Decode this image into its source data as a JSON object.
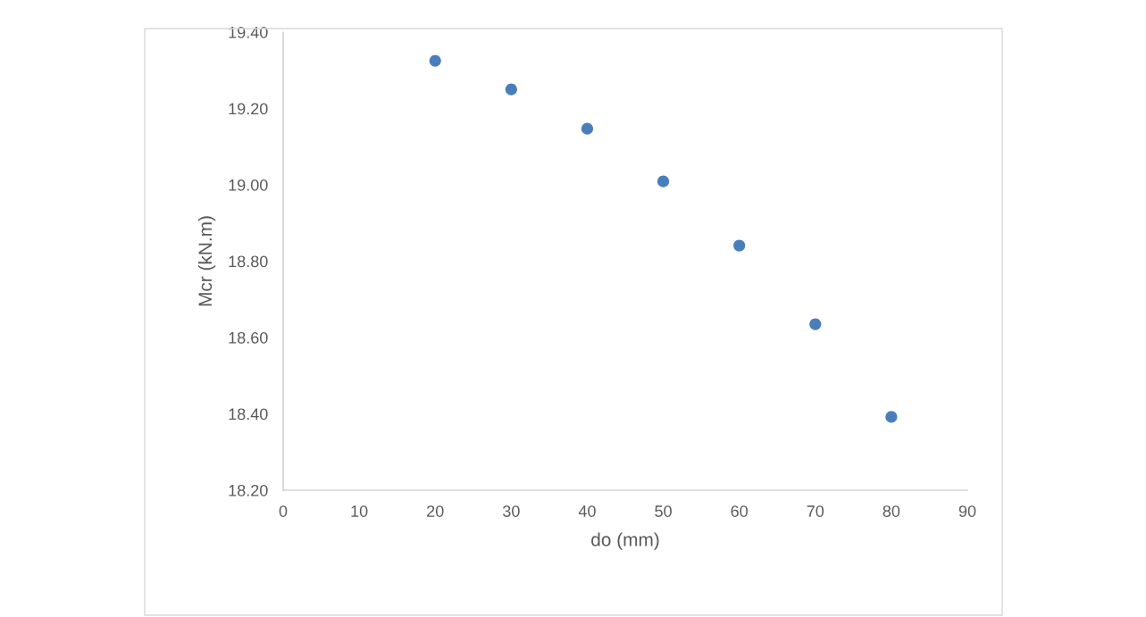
{
  "chart_data": {
    "type": "scatter",
    "xlabel": "do (mm)",
    "ylabel": "Mcr (kN.m)",
    "x": [
      20,
      30,
      40,
      50,
      60,
      70,
      80
    ],
    "series": [
      {
        "color": "#4a7ebb",
        "values": [
          19.325,
          19.25,
          19.147,
          19.009,
          18.841,
          18.635,
          18.392
        ]
      }
    ],
    "xlim": [
      0,
      90
    ],
    "xticks": [
      0,
      10,
      20,
      30,
      40,
      50,
      60,
      70,
      80,
      90
    ],
    "ylim": [
      18.2,
      19.4
    ],
    "yticks": [
      {
        "value": 18.2,
        "label": "18.20"
      },
      {
        "value": 18.4,
        "label": "18.40"
      },
      {
        "value": 18.6,
        "label": "18.60"
      },
      {
        "value": 18.8,
        "label": "18.80"
      },
      {
        "value": 19.0,
        "label": "19.00"
      },
      {
        "value": 19.2,
        "label": "19.20"
      },
      {
        "value": 19.4,
        "label": "19.40"
      }
    ],
    "grid": false,
    "marker": "circle"
  }
}
